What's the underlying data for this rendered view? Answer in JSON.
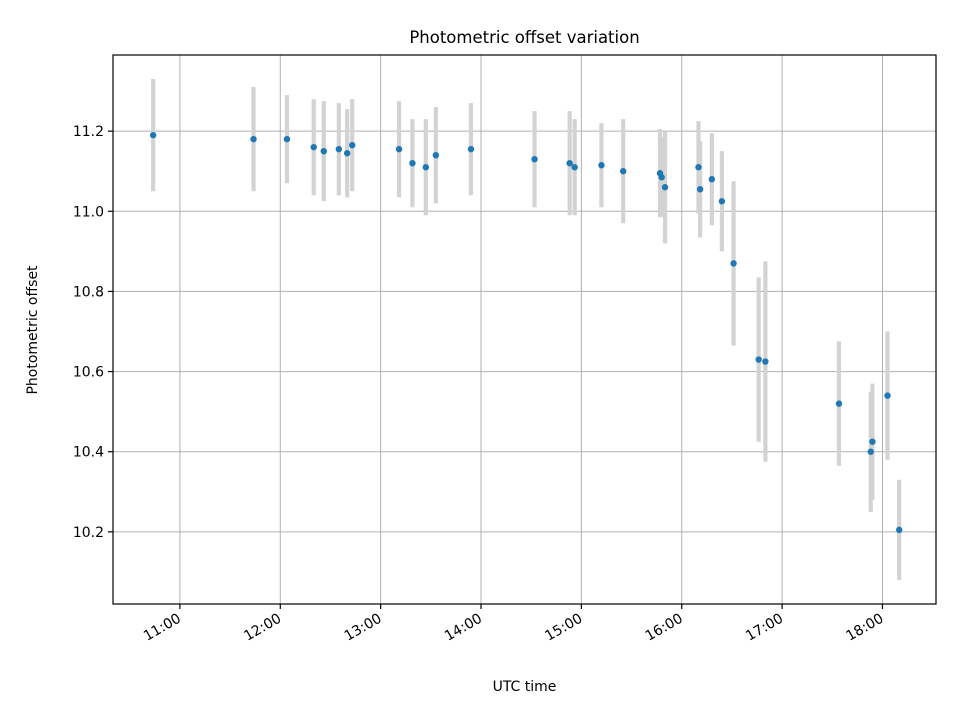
{
  "chart_data": {
    "type": "scatter",
    "title": "Photometric offset variation",
    "xlabel": "UTC time",
    "ylabel": "Photometric offset",
    "xlim": [
      "10:20",
      "18:32"
    ],
    "ylim": [
      10.02,
      11.39
    ],
    "x_ticks": [
      "11:00",
      "12:00",
      "13:00",
      "14:00",
      "15:00",
      "16:00",
      "17:00",
      "18:00"
    ],
    "y_ticks": [
      10.2,
      10.4,
      10.6,
      10.8,
      11.0,
      11.2
    ],
    "y_tick_labels": [
      "10.2",
      "10.4",
      "10.6",
      "10.8",
      "11.0",
      "11.2"
    ],
    "grid": true,
    "point_color": "#1f77b4",
    "errorbar_color": "#d3d3d3",
    "points": [
      {
        "x": "10:44",
        "y": 11.19,
        "yerr": 0.14
      },
      {
        "x": "11:44",
        "y": 11.18,
        "yerr": 0.13
      },
      {
        "x": "12:04",
        "y": 11.18,
        "yerr": 0.11
      },
      {
        "x": "12:20",
        "y": 11.16,
        "yerr": 0.12
      },
      {
        "x": "12:26",
        "y": 11.15,
        "yerr": 0.125
      },
      {
        "x": "12:35",
        "y": 11.155,
        "yerr": 0.115
      },
      {
        "x": "12:40",
        "y": 11.145,
        "yerr": 0.11
      },
      {
        "x": "12:43",
        "y": 11.165,
        "yerr": 0.115
      },
      {
        "x": "13:11",
        "y": 11.155,
        "yerr": 0.12
      },
      {
        "x": "13:19",
        "y": 11.12,
        "yerr": 0.11
      },
      {
        "x": "13:27",
        "y": 11.11,
        "yerr": 0.12
      },
      {
        "x": "13:33",
        "y": 11.14,
        "yerr": 0.12
      },
      {
        "x": "13:54",
        "y": 11.155,
        "yerr": 0.115
      },
      {
        "x": "14:32",
        "y": 11.13,
        "yerr": 0.12
      },
      {
        "x": "14:53",
        "y": 11.12,
        "yerr": 0.13
      },
      {
        "x": "14:56",
        "y": 11.11,
        "yerr": 0.12
      },
      {
        "x": "15:12",
        "y": 11.115,
        "yerr": 0.105
      },
      {
        "x": "15:25",
        "y": 11.1,
        "yerr": 0.13
      },
      {
        "x": "15:47",
        "y": 11.095,
        "yerr": 0.11
      },
      {
        "x": "15:48",
        "y": 11.085,
        "yerr": 0.1
      },
      {
        "x": "15:50",
        "y": 11.06,
        "yerr": 0.14
      },
      {
        "x": "16:10",
        "y": 11.11,
        "yerr": 0.115
      },
      {
        "x": "16:11",
        "y": 11.055,
        "yerr": 0.12
      },
      {
        "x": "16:18",
        "y": 11.08,
        "yerr": 0.115
      },
      {
        "x": "16:24",
        "y": 11.025,
        "yerr": 0.125
      },
      {
        "x": "16:31",
        "y": 10.87,
        "yerr": 0.205
      },
      {
        "x": "16:46",
        "y": 10.63,
        "yerr": 0.205
      },
      {
        "x": "16:50",
        "y": 10.625,
        "yerr": 0.25
      },
      {
        "x": "17:34",
        "y": 10.52,
        "yerr": 0.155
      },
      {
        "x": "17:53",
        "y": 10.4,
        "yerr": 0.15
      },
      {
        "x": "17:54",
        "y": 10.425,
        "yerr": 0.145
      },
      {
        "x": "18:03",
        "y": 10.54,
        "yerr": 0.16
      },
      {
        "x": "18:10",
        "y": 10.205,
        "yerr": 0.125
      }
    ]
  }
}
